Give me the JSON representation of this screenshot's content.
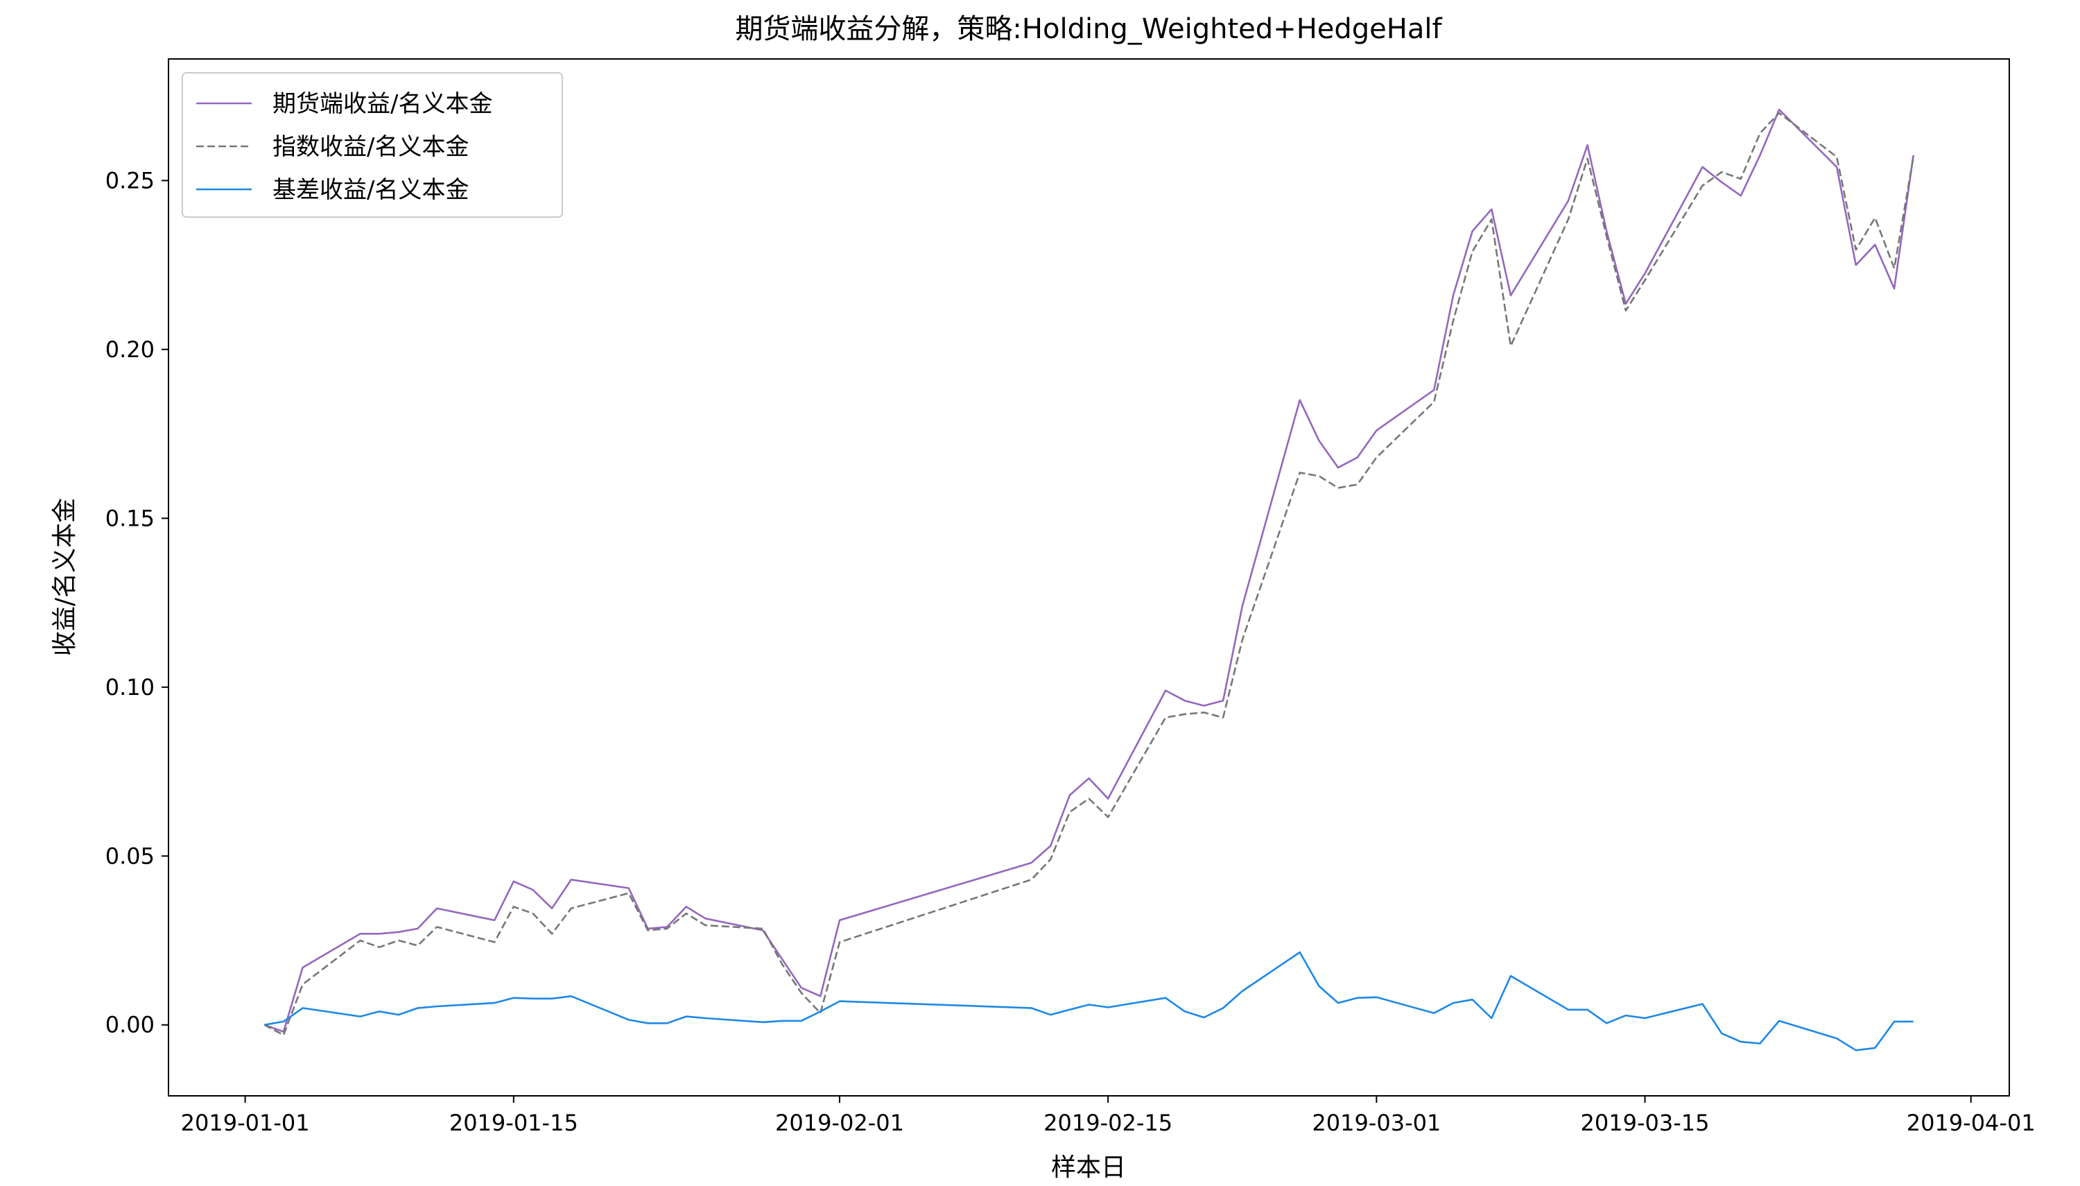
{
  "chart_data": {
    "type": "line",
    "title": "期货端收益分解，策略:Holding_Weighted+HedgeHalf",
    "xlabel": "样本日",
    "ylabel": "收益/名义本金",
    "xlim": [
      "2018-12-28",
      "2019-04-03"
    ],
    "ylim": [
      -0.021,
      0.286
    ],
    "x_ticks": [
      "2019-01-01",
      "2019-01-15",
      "2019-02-01",
      "2019-02-15",
      "2019-03-01",
      "2019-03-15",
      "2019-04-01"
    ],
    "y_ticks": [
      0.0,
      0.05,
      0.1,
      0.15,
      0.2,
      0.25
    ],
    "y_tick_labels": [
      "0.00",
      "0.05",
      "0.10",
      "0.15",
      "0.20",
      "0.25"
    ],
    "grid": false,
    "legend_position": "top-left",
    "x": [
      "2019-01-02",
      "2019-01-03",
      "2019-01-04",
      "2019-01-07",
      "2019-01-08",
      "2019-01-09",
      "2019-01-10",
      "2019-01-11",
      "2019-01-14",
      "2019-01-15",
      "2019-01-16",
      "2019-01-17",
      "2019-01-18",
      "2019-01-21",
      "2019-01-22",
      "2019-01-23",
      "2019-01-24",
      "2019-01-25",
      "2019-01-28",
      "2019-01-29",
      "2019-01-30",
      "2019-01-31",
      "2019-02-01",
      "2019-02-11",
      "2019-02-12",
      "2019-02-13",
      "2019-02-14",
      "2019-02-15",
      "2019-02-18",
      "2019-02-19",
      "2019-02-20",
      "2019-02-21",
      "2019-02-22",
      "2019-02-25",
      "2019-02-26",
      "2019-02-27",
      "2019-02-28",
      "2019-03-01",
      "2019-03-04",
      "2019-03-05",
      "2019-03-06",
      "2019-03-07",
      "2019-03-08",
      "2019-03-11",
      "2019-03-12",
      "2019-03-13",
      "2019-03-14",
      "2019-03-15",
      "2019-03-18",
      "2019-03-19",
      "2019-03-20",
      "2019-03-21",
      "2019-03-22",
      "2019-03-25",
      "2019-03-26",
      "2019-03-27",
      "2019-03-28",
      "2019-03-29"
    ],
    "series": [
      {
        "name": "期货端收益/名义本金",
        "color": "#9467bd",
        "dash": "solid",
        "values": [
          0.0,
          -0.002,
          0.017,
          0.027,
          0.027,
          0.0275,
          0.0285,
          0.0345,
          0.031,
          0.0425,
          0.04,
          0.0345,
          0.043,
          0.0405,
          0.0285,
          0.029,
          0.035,
          0.0315,
          0.028,
          0.0195,
          0.011,
          0.0085,
          0.031,
          0.048,
          0.053,
          0.068,
          0.073,
          0.067,
          0.099,
          0.096,
          0.0945,
          0.096,
          0.124,
          0.185,
          0.173,
          0.165,
          0.168,
          0.176,
          0.188,
          0.216,
          0.235,
          0.2415,
          0.216,
          0.244,
          0.2605,
          0.235,
          0.2135,
          0.2225,
          0.254,
          0.2495,
          0.2455,
          0.2575,
          0.271,
          0.254,
          0.225,
          0.231,
          0.218,
          0.2575
        ]
      },
      {
        "name": "指数收益/名义本金",
        "color": "#777777",
        "dash": "dashed",
        "values": [
          0.0,
          -0.003,
          0.012,
          0.025,
          0.023,
          0.025,
          0.0235,
          0.029,
          0.0245,
          0.035,
          0.033,
          0.027,
          0.0345,
          0.039,
          0.028,
          0.0285,
          0.033,
          0.0295,
          0.0285,
          0.018,
          0.0095,
          0.0035,
          0.0245,
          0.043,
          0.049,
          0.063,
          0.067,
          0.0615,
          0.091,
          0.092,
          0.0925,
          0.091,
          0.114,
          0.1635,
          0.1625,
          0.159,
          0.16,
          0.168,
          0.1845,
          0.2085,
          0.229,
          0.2385,
          0.201,
          0.2385,
          0.2565,
          0.2335,
          0.2115,
          0.2205,
          0.2485,
          0.2525,
          0.2505,
          0.264,
          0.27,
          0.257,
          0.2295,
          0.239,
          0.224,
          0.257
        ]
      },
      {
        "name": "基差收益/名义本金",
        "color": "#1e88e5",
        "dash": "solid",
        "values": [
          0.0,
          0.001,
          0.005,
          0.0025,
          0.004,
          0.003,
          0.005,
          0.0055,
          0.0065,
          0.008,
          0.0078,
          0.0078,
          0.0085,
          0.0015,
          0.0005,
          0.0005,
          0.0025,
          0.002,
          0.0008,
          0.0012,
          0.0012,
          0.004,
          0.007,
          0.005,
          0.003,
          0.0045,
          0.006,
          0.0052,
          0.008,
          0.004,
          0.0022,
          0.005,
          0.01,
          0.0215,
          0.0115,
          0.0065,
          0.008,
          0.0082,
          0.0035,
          0.0065,
          0.0075,
          0.002,
          0.0145,
          0.0045,
          0.0045,
          0.0005,
          0.0028,
          0.002,
          0.0062,
          -0.0025,
          -0.005,
          -0.0055,
          0.0012,
          -0.004,
          -0.0075,
          -0.0068,
          0.001,
          0.001
        ]
      }
    ]
  }
}
